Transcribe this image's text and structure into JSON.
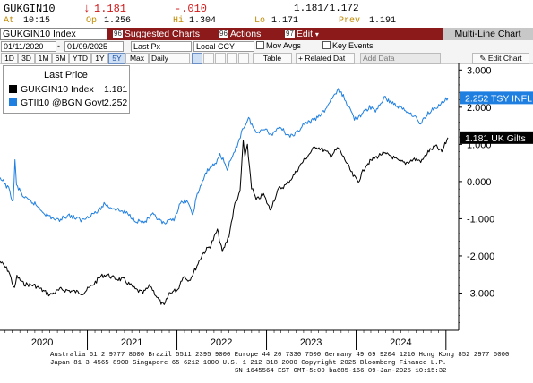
{
  "header": {
    "ticker": "GUKGIN10",
    "arrow": "↓",
    "last": "1.181",
    "change": "-.010",
    "bid_ask": "1.181/1.172",
    "prev_label": "Prev",
    "prev": "1.191",
    "at_label": "At",
    "time": "10:15",
    "op_label": "Op",
    "open": "1.256",
    "hi_label": "Hi",
    "high": "1.304",
    "lo_label": "Lo",
    "low": "1.171"
  },
  "menu": {
    "security": "GUKGIN10 Index",
    "suggested": {
      "num": "96",
      "label": "Suggested Charts"
    },
    "actions": {
      "num": "96",
      "label": "Actions"
    },
    "edit": {
      "num": "97",
      "label": "Edit"
    },
    "multi": "Multi-Line Chart"
  },
  "toolbar": {
    "start_date": "01/11/2020",
    "end_date": "01/09/2025",
    "field": "Last Px",
    "currency": "Local CCY",
    "mov_avgs": "Mov Avgs",
    "key_events": "Key Events",
    "periods": [
      "1D",
      "3D",
      "1M",
      "6M",
      "YTD",
      "1Y",
      "5Y",
      "Max"
    ],
    "selected_period": "5Y",
    "frequency": "Daily",
    "table": "Table",
    "related": "+ Related Dat",
    "add_data": "Add Data",
    "edit_chart": "Edit Chart"
  },
  "legend": {
    "title": "Last Price",
    "series": [
      {
        "name": "GUKGIN10 Index",
        "value": "1.181",
        "color": "#000000"
      },
      {
        "name": "GTII10 @BGN Govt",
        "value": "2.252",
        "color": "#1f7fe0"
      }
    ]
  },
  "tags": {
    "blue": "2.252 TSY INFL",
    "black": "1.181 UK Gilts"
  },
  "chart_data": {
    "type": "line",
    "x_range": [
      "2020-01-11",
      "2025-01-09"
    ],
    "xticks": [
      "2020",
      "2021",
      "2022",
      "2023",
      "2024"
    ],
    "yticks": [
      "3.000",
      "2.000",
      "1.000",
      "0.000",
      "-1.000",
      "-2.000",
      "-3.000"
    ],
    "ylim": [
      -4.0,
      3.2
    ],
    "grid": false,
    "series": [
      {
        "name": "GUKGIN10 Index",
        "color": "#000000",
        "points": [
          [
            "2020-01-11",
            -2.15
          ],
          [
            "2020-02-15",
            -2.4
          ],
          [
            "2020-03-10",
            -2.9
          ],
          [
            "2020-03-20",
            -2.55
          ],
          [
            "2020-04-15",
            -2.75
          ],
          [
            "2020-06-01",
            -2.8
          ],
          [
            "2020-08-01",
            -3.05
          ],
          [
            "2020-09-15",
            -2.9
          ],
          [
            "2020-11-01",
            -2.95
          ],
          [
            "2020-12-15",
            -3.0
          ],
          [
            "2021-01-20",
            -2.8
          ],
          [
            "2021-02-25",
            -2.55
          ],
          [
            "2021-03-20",
            -2.5
          ],
          [
            "2021-04-20",
            -2.6
          ],
          [
            "2021-06-01",
            -2.65
          ],
          [
            "2021-07-15",
            -2.9
          ],
          [
            "2021-08-15",
            -3.0
          ],
          [
            "2021-09-15",
            -2.8
          ],
          [
            "2021-10-20",
            -3.2
          ],
          [
            "2021-11-10",
            -3.35
          ],
          [
            "2021-12-01",
            -3.0
          ],
          [
            "2022-01-05",
            -2.9
          ],
          [
            "2022-01-25",
            -2.55
          ],
          [
            "2022-02-20",
            -2.65
          ],
          [
            "2022-03-10",
            -2.45
          ],
          [
            "2022-04-15",
            -1.95
          ],
          [
            "2022-05-20",
            -1.7
          ],
          [
            "2022-06-15",
            -1.3
          ],
          [
            "2022-07-05",
            -1.9
          ],
          [
            "2022-08-01",
            -1.45
          ],
          [
            "2022-08-25",
            -0.6
          ],
          [
            "2022-09-15",
            -0.3
          ],
          [
            "2022-09-28",
            1.1
          ],
          [
            "2022-10-05",
            0.65
          ],
          [
            "2022-10-15",
            0.95
          ],
          [
            "2022-11-01",
            -0.15
          ],
          [
            "2022-11-20",
            -0.5
          ],
          [
            "2022-12-20",
            -0.35
          ],
          [
            "2023-01-15",
            -0.75
          ],
          [
            "2023-02-20",
            -0.2
          ],
          [
            "2023-03-20",
            -0.1
          ],
          [
            "2023-04-20",
            0.15
          ],
          [
            "2023-05-25",
            0.5
          ],
          [
            "2023-06-25",
            0.75
          ],
          [
            "2023-07-20",
            0.95
          ],
          [
            "2023-08-20",
            0.85
          ],
          [
            "2023-09-20",
            0.7
          ],
          [
            "2023-10-20",
            0.9
          ],
          [
            "2023-11-20",
            0.55
          ],
          [
            "2023-12-20",
            0.15
          ],
          [
            "2024-01-10",
            0.0
          ],
          [
            "2024-02-10",
            0.45
          ],
          [
            "2024-03-10",
            0.6
          ],
          [
            "2024-04-15",
            0.75
          ],
          [
            "2024-05-20",
            0.7
          ],
          [
            "2024-06-20",
            0.55
          ],
          [
            "2024-07-20",
            0.5
          ],
          [
            "2024-08-25",
            0.6
          ],
          [
            "2024-09-25",
            0.55
          ],
          [
            "2024-10-20",
            0.8
          ],
          [
            "2024-11-20",
            0.95
          ],
          [
            "2024-12-15",
            0.8
          ],
          [
            "2025-01-09",
            1.18
          ]
        ]
      },
      {
        "name": "GTII10 @BGN Govt",
        "color": "#1f7fe0",
        "points": [
          [
            "2020-01-11",
            0.05
          ],
          [
            "2020-01-25",
            0.0
          ],
          [
            "2020-02-15",
            -0.2
          ],
          [
            "2020-03-05",
            -0.55
          ],
          [
            "2020-03-12",
            0.6
          ],
          [
            "2020-03-18",
            -0.1
          ],
          [
            "2020-04-20",
            -0.45
          ],
          [
            "2020-06-01",
            -0.6
          ],
          [
            "2020-07-20",
            -0.9
          ],
          [
            "2020-09-01",
            -1.05
          ],
          [
            "2020-10-15",
            -0.9
          ],
          [
            "2020-12-10",
            -1.05
          ],
          [
            "2021-01-10",
            -0.9
          ],
          [
            "2021-02-15",
            -0.8
          ],
          [
            "2021-03-10",
            -0.6
          ],
          [
            "2021-04-10",
            -0.7
          ],
          [
            "2021-06-10",
            -0.85
          ],
          [
            "2021-07-20",
            -1.05
          ],
          [
            "2021-08-20",
            -1.1
          ],
          [
            "2021-09-25",
            -0.9
          ],
          [
            "2021-11-10",
            -1.15
          ],
          [
            "2021-12-20",
            -1.0
          ],
          [
            "2022-01-15",
            -0.6
          ],
          [
            "2022-02-10",
            -0.5
          ],
          [
            "2022-03-05",
            -0.9
          ],
          [
            "2022-03-25",
            -0.35
          ],
          [
            "2022-04-15",
            0.0
          ],
          [
            "2022-05-10",
            0.35
          ],
          [
            "2022-06-10",
            0.5
          ],
          [
            "2022-06-25",
            0.75
          ],
          [
            "2022-07-25",
            0.35
          ],
          [
            "2022-08-25",
            0.8
          ],
          [
            "2022-09-25",
            1.4
          ],
          [
            "2022-10-20",
            1.7
          ],
          [
            "2022-11-20",
            1.3
          ],
          [
            "2022-12-20",
            1.45
          ],
          [
            "2023-01-20",
            1.25
          ],
          [
            "2023-02-25",
            1.5
          ],
          [
            "2023-03-20",
            1.3
          ],
          [
            "2023-04-20",
            1.2
          ],
          [
            "2023-05-25",
            1.5
          ],
          [
            "2023-06-25",
            1.6
          ],
          [
            "2023-07-25",
            1.7
          ],
          [
            "2023-08-25",
            1.9
          ],
          [
            "2023-09-25",
            2.25
          ],
          [
            "2023-10-20",
            2.45
          ],
          [
            "2023-11-10",
            2.3
          ],
          [
            "2023-11-25",
            2.1
          ],
          [
            "2023-12-25",
            1.7
          ],
          [
            "2024-01-15",
            1.75
          ],
          [
            "2024-02-25",
            2.0
          ],
          [
            "2024-03-20",
            1.9
          ],
          [
            "2024-04-25",
            2.25
          ],
          [
            "2024-05-20",
            2.15
          ],
          [
            "2024-06-25",
            2.0
          ],
          [
            "2024-07-25",
            1.9
          ],
          [
            "2024-08-20",
            1.8
          ],
          [
            "2024-09-20",
            1.55
          ],
          [
            "2024-10-20",
            1.85
          ],
          [
            "2024-11-20",
            2.0
          ],
          [
            "2024-12-15",
            2.1
          ],
          [
            "2025-01-09",
            2.25
          ]
        ]
      }
    ]
  },
  "footer": {
    "line1": "Australia 61 2 9777 8600 Brazil 5511 2395 9000 Europe 44 20 7330 7500 Germany 49 69 9204 1210 Hong Kong 852 2977 6000",
    "line2": "Japan 81 3 4565 8900       Singapore 65 6212 1000        U.S. 1 212 318 2000              Copyright 2025 Bloomberg Finance L.P.",
    "line3": "SN 1645564 EST  GMT-5:00 ba685-166 09-Jan-2025 10:15:32"
  }
}
